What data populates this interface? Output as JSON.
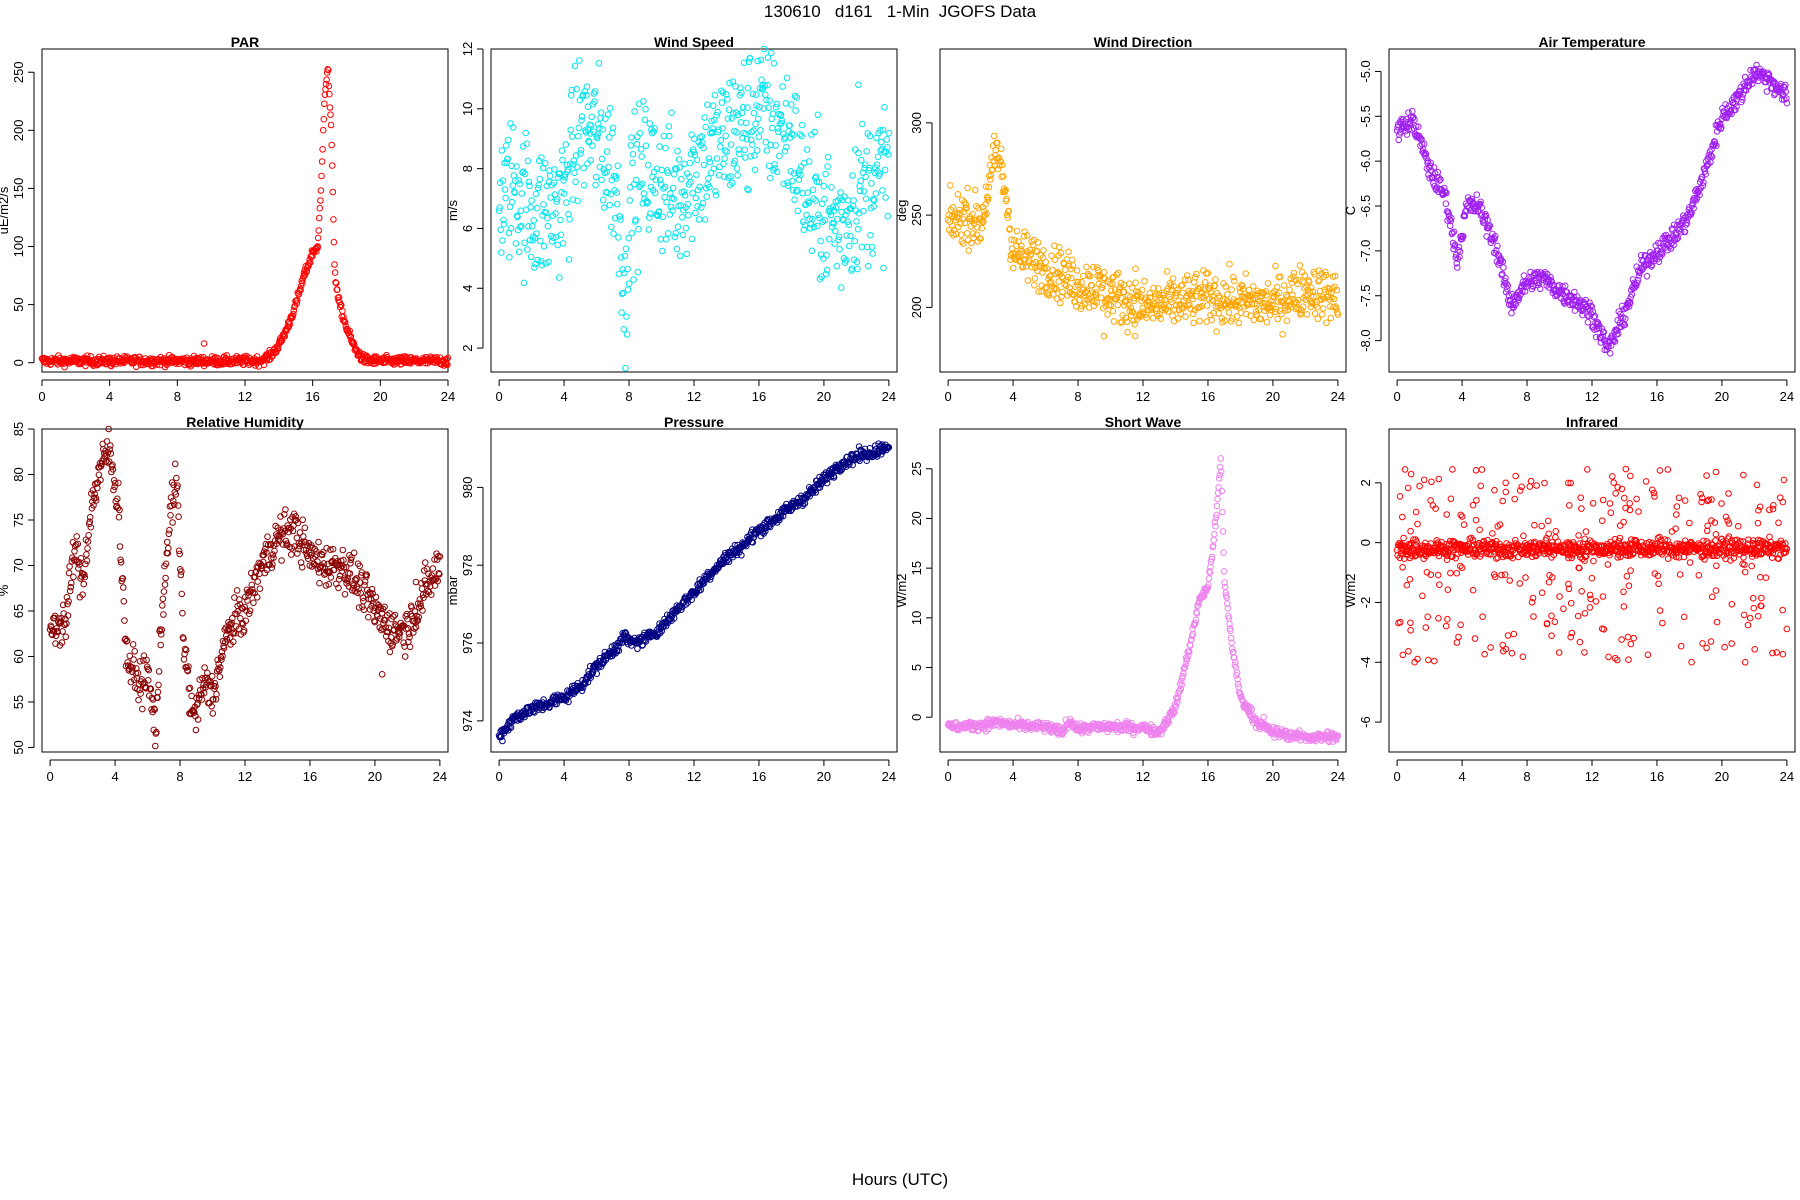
{
  "title": "130610   d161   1-Min  JGOFS Data",
  "x_axis_label": "Hours (UTC)",
  "chart_data": [
    {
      "type": "scatter",
      "title": "PAR",
      "ylabel": "uE/m2/s",
      "color": "#ff0000",
      "xlim": [
        0,
        24
      ],
      "ylim": [
        -8,
        270
      ],
      "x_ticks": [
        0,
        4,
        8,
        12,
        16,
        20,
        24
      ],
      "y_ticks": [
        0,
        50,
        100,
        150,
        200,
        250
      ],
      "profile": [
        [
          0,
          1.5
        ],
        [
          12.5,
          1.5
        ],
        [
          13.0,
          2
        ],
        [
          13.5,
          6
        ],
        [
          14,
          15
        ],
        [
          14.5,
          30
        ],
        [
          15,
          50
        ],
        [
          15.5,
          75
        ],
        [
          16,
          95
        ],
        [
          16.3,
          100
        ],
        [
          16.5,
          150
        ],
        [
          16.7,
          230
        ],
        [
          16.9,
          255
        ],
        [
          17.1,
          200
        ],
        [
          17.3,
          80
        ],
        [
          17.5,
          55
        ],
        [
          18,
          30
        ],
        [
          18.5,
          12
        ],
        [
          19,
          3
        ],
        [
          19.5,
          1.5
        ],
        [
          24,
          1.5
        ]
      ],
      "noise": 2,
      "outliers": 8
    },
    {
      "type": "scatter",
      "title": "Wind Speed",
      "ylabel": "m/s",
      "color": "#00e5ee",
      "xlim": [
        -0.5,
        24.5
      ],
      "ylim": [
        1.2,
        12
      ],
      "x_ticks": [
        0,
        4,
        8,
        12,
        16,
        20,
        24
      ],
      "y_ticks": [
        2,
        4,
        6,
        8,
        10,
        12
      ],
      "profile": [
        [
          0,
          7
        ],
        [
          1,
          7.5
        ],
        [
          2,
          6.5
        ],
        [
          3,
          6.5
        ],
        [
          4,
          7
        ],
        [
          5,
          9.5
        ],
        [
          6,
          9
        ],
        [
          7,
          8
        ],
        [
          7.5,
          6
        ],
        [
          7.8,
          3
        ],
        [
          8,
          7
        ],
        [
          9,
          8
        ],
        [
          10,
          7.5
        ],
        [
          11,
          7
        ],
        [
          12,
          8
        ],
        [
          13,
          8.5
        ],
        [
          14,
          9
        ],
        [
          15,
          9.5
        ],
        [
          16,
          10
        ],
        [
          17,
          9.5
        ],
        [
          18,
          9
        ],
        [
          19,
          7
        ],
        [
          20,
          6.5
        ],
        [
          21,
          6
        ],
        [
          22,
          7
        ],
        [
          23,
          7.5
        ],
        [
          24,
          8
        ]
      ],
      "noise": 1.2,
      "outliers": 4
    },
    {
      "type": "scatter",
      "title": "Wind Direction",
      "ylabel": "deg",
      "color": "#ffa500",
      "xlim": [
        -0.5,
        24.5
      ],
      "ylim": [
        165,
        340
      ],
      "x_ticks": [
        0,
        4,
        8,
        12,
        16,
        20,
        24
      ],
      "y_ticks": [
        200,
        250,
        300
      ],
      "profile": [
        [
          0,
          245
        ],
        [
          1,
          250
        ],
        [
          2,
          245
        ],
        [
          3,
          285
        ],
        [
          3.5,
          265
        ],
        [
          4,
          230
        ],
        [
          6,
          222
        ],
        [
          7.5,
          215
        ],
        [
          8,
          212
        ],
        [
          9,
          212
        ],
        [
          10,
          207
        ],
        [
          12,
          200
        ],
        [
          14,
          203
        ],
        [
          16,
          205
        ],
        [
          18,
          203
        ],
        [
          20,
          202
        ],
        [
          22,
          210
        ],
        [
          24,
          205
        ]
      ],
      "noise": 7,
      "outliers": 6
    },
    {
      "type": "scatter",
      "title": "Air Temperature",
      "ylabel": "C",
      "color": "#a020f0",
      "xlim": [
        -0.5,
        24.5
      ],
      "ylim": [
        -8.35,
        -4.75
      ],
      "x_ticks": [
        0,
        4,
        8,
        12,
        16,
        20,
        24
      ],
      "y_ticks": [
        -8.0,
        -7.5,
        -7.0,
        -6.5,
        -6.0,
        -5.5,
        -5.0
      ],
      "profile": [
        [
          0,
          -5.65
        ],
        [
          1,
          -5.55
        ],
        [
          2,
          -6.1
        ],
        [
          3,
          -6.4
        ],
        [
          3.7,
          -7.1
        ],
        [
          4.3,
          -6.5
        ],
        [
          5,
          -6.5
        ],
        [
          6,
          -6.9
        ],
        [
          7,
          -7.6
        ],
        [
          8,
          -7.35
        ],
        [
          9,
          -7.3
        ],
        [
          10,
          -7.45
        ],
        [
          11,
          -7.55
        ],
        [
          12,
          -7.7
        ],
        [
          13,
          -8.1
        ],
        [
          14,
          -7.7
        ],
        [
          15,
          -7.2
        ],
        [
          16,
          -7.0
        ],
        [
          17,
          -6.85
        ],
        [
          18,
          -6.6
        ],
        [
          19,
          -6.1
        ],
        [
          20,
          -5.5
        ],
        [
          21,
          -5.3
        ],
        [
          22,
          -5.0
        ],
        [
          23,
          -5.1
        ],
        [
          24,
          -5.3
        ]
      ],
      "noise": 0.06,
      "outliers": 0
    },
    {
      "type": "scatter",
      "title": "Relative Humidity",
      "ylabel": "%",
      "color": "#8b0000",
      "xlim": [
        -0.5,
        24.5
      ],
      "ylim": [
        49.5,
        85
      ],
      "x_ticks": [
        0,
        4,
        8,
        12,
        16,
        20,
        24
      ],
      "y_ticks": [
        50,
        55,
        60,
        65,
        70,
        75,
        80,
        85
      ],
      "profile": [
        [
          0,
          63
        ],
        [
          1,
          64
        ],
        [
          1.5,
          72
        ],
        [
          2,
          68
        ],
        [
          2.5,
          76
        ],
        [
          3,
          80
        ],
        [
          3.6,
          83
        ],
        [
          4.2,
          77
        ],
        [
          4.7,
          60
        ],
        [
          5.5,
          57
        ],
        [
          6,
          58
        ],
        [
          6.5,
          52
        ],
        [
          7,
          68
        ],
        [
          7.5,
          77
        ],
        [
          7.8,
          79
        ],
        [
          8.2,
          62
        ],
        [
          8.8,
          53
        ],
        [
          9.5,
          57
        ],
        [
          10,
          56
        ],
        [
          11,
          63
        ],
        [
          12,
          65
        ],
        [
          13,
          70
        ],
        [
          14,
          73
        ],
        [
          15,
          74
        ],
        [
          16,
          71
        ],
        [
          17,
          70
        ],
        [
          18,
          70
        ],
        [
          19,
          68
        ],
        [
          20,
          65
        ],
        [
          21,
          63
        ],
        [
          22,
          63
        ],
        [
          23,
          67
        ],
        [
          24,
          70
        ]
      ],
      "noise": 1.2,
      "outliers": 3
    },
    {
      "type": "scatter",
      "title": "Pressure",
      "ylabel": "mbar",
      "color": "#000080",
      "xlim": [
        -0.5,
        24.5
      ],
      "ylim": [
        973.2,
        981.5
      ],
      "x_ticks": [
        0,
        4,
        8,
        12,
        16,
        20,
        24
      ],
      "y_ticks": [
        974,
        976,
        978,
        980
      ],
      "profile": [
        [
          0,
          973.6
        ],
        [
          1,
          974.1
        ],
        [
          2,
          974.3
        ],
        [
          4,
          974.6
        ],
        [
          5,
          974.9
        ],
        [
          6,
          975.4
        ],
        [
          7,
          975.8
        ],
        [
          7.8,
          976.2
        ],
        [
          8,
          976.0
        ],
        [
          9,
          976.1
        ],
        [
          10,
          976.4
        ],
        [
          11,
          976.9
        ],
        [
          12,
          977.3
        ],
        [
          13,
          977.8
        ],
        [
          14,
          978.2
        ],
        [
          15,
          978.5
        ],
        [
          16,
          978.9
        ],
        [
          17,
          979.2
        ],
        [
          18,
          979.5
        ],
        [
          19,
          979.8
        ],
        [
          20,
          980.2
        ],
        [
          21,
          980.6
        ],
        [
          22,
          980.8
        ],
        [
          23,
          980.9
        ],
        [
          24,
          981.1
        ]
      ],
      "noise": 0.08,
      "outliers": 0
    },
    {
      "type": "scatter",
      "title": "Short Wave",
      "ylabel": "W/m2",
      "color": "#ee82ee",
      "xlim": [
        -0.5,
        24.5
      ],
      "ylim": [
        -3.5,
        29
      ],
      "x_ticks": [
        0,
        4,
        8,
        12,
        16,
        20,
        24
      ],
      "y_ticks": [
        0,
        5,
        10,
        15,
        20,
        25
      ],
      "profile": [
        [
          0,
          -1
        ],
        [
          2,
          -0.8
        ],
        [
          3,
          -0.5
        ],
        [
          4,
          -0.8
        ],
        [
          6,
          -1
        ],
        [
          7,
          -1.5
        ],
        [
          7.5,
          -0.3
        ],
        [
          8,
          -1.2
        ],
        [
          9,
          -1
        ],
        [
          10,
          -1
        ],
        [
          12,
          -1
        ],
        [
          13,
          -1.5
        ],
        [
          14,
          1
        ],
        [
          15,
          8
        ],
        [
          15.5,
          12
        ],
        [
          16,
          13
        ],
        [
          16.5,
          20
        ],
        [
          16.8,
          26
        ],
        [
          17,
          14
        ],
        [
          17.5,
          7
        ],
        [
          18,
          2
        ],
        [
          19,
          -0.5
        ],
        [
          20,
          -1.5
        ],
        [
          22,
          -2
        ],
        [
          24,
          -2
        ]
      ],
      "noise": 0.25,
      "outliers": 6
    },
    {
      "type": "scatter",
      "title": "Infrared",
      "ylabel": "W/m2",
      "color": "#ff0000",
      "xlim": [
        -0.5,
        24.5
      ],
      "ylim": [
        -7,
        3.8
      ],
      "x_ticks": [
        0,
        4,
        8,
        12,
        16,
        20,
        24
      ],
      "y_ticks": [
        -6,
        -4,
        -2,
        0,
        2
      ],
      "profile": [
        [
          0,
          -0.2
        ],
        [
          24,
          -0.2
        ]
      ],
      "noise": 0.15,
      "outliers": 300,
      "outlier_range": [
        -4,
        2.5
      ]
    }
  ]
}
